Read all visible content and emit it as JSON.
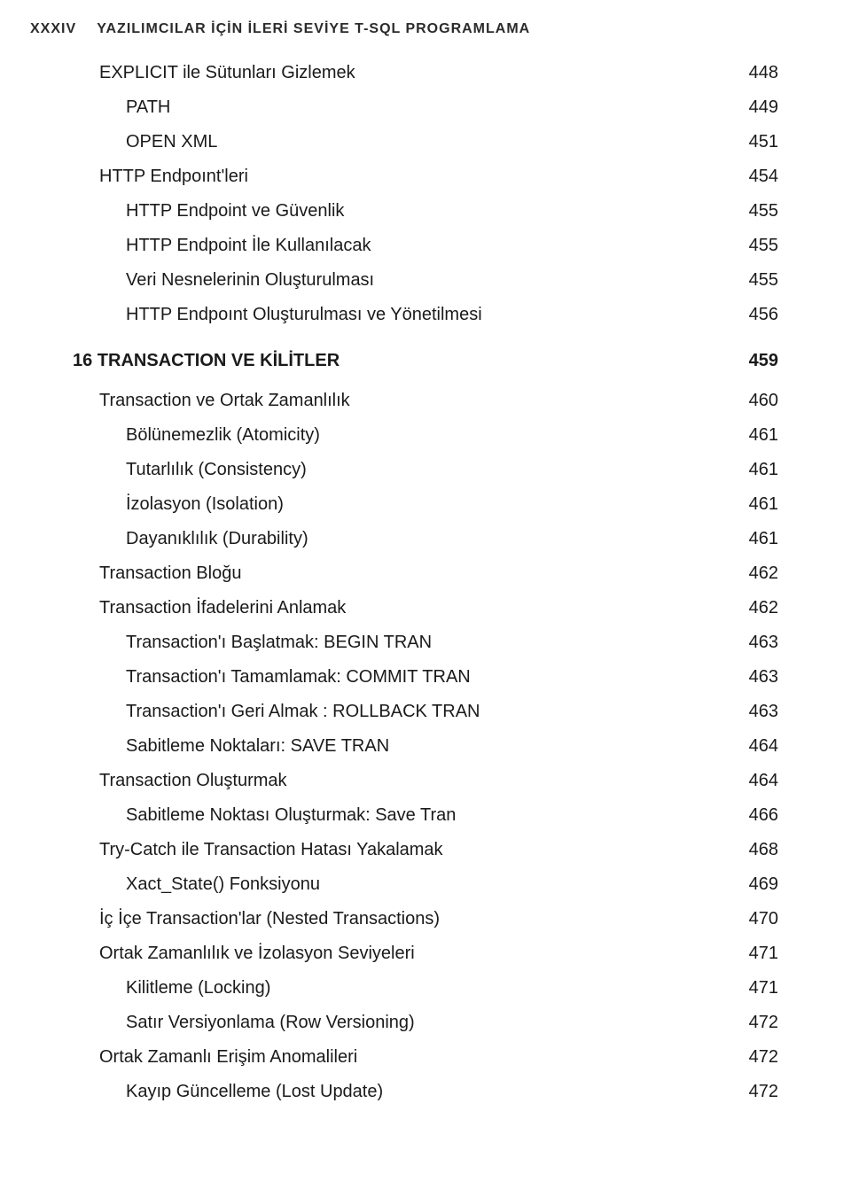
{
  "header": {
    "pageNumeral": "XXXIV",
    "title": "YAZILIMCILAR İÇİN İLERİ SEVİYE T-SQL PROGRAMLAMA"
  },
  "entries": [
    {
      "label": "EXPLICIT ile Sütunları Gizlemek",
      "page": "448",
      "level": 2,
      "chapter": false
    },
    {
      "label": "PATH",
      "page": "449",
      "level": 3,
      "chapter": false
    },
    {
      "label": "OPEN XML",
      "page": "451",
      "level": 3,
      "chapter": false
    },
    {
      "label": "HTTP Endpoınt'leri",
      "page": "454",
      "level": 2,
      "chapter": false
    },
    {
      "label": "HTTP Endpoint ve Güvenlik",
      "page": "455",
      "level": 3,
      "chapter": false
    },
    {
      "label": "HTTP Endpoint İle Kullanılacak",
      "page": "455",
      "level": 3,
      "chapter": false
    },
    {
      "label": "Veri Nesnelerinin Oluşturulması",
      "page": "455",
      "level": 3,
      "chapter": false
    },
    {
      "label": "HTTP Endpoınt Oluşturulması ve Yönetilmesi",
      "page": "456",
      "level": 3,
      "chapter": false
    },
    {
      "label": "16 TRANSACTION VE KİLİTLER",
      "page": "459",
      "level": 1,
      "chapter": true
    },
    {
      "label": "Transaction ve Ortak Zamanlılık",
      "page": "460",
      "level": 2,
      "chapter": false
    },
    {
      "label": "Bölünemezlik (Atomicity)",
      "page": "461",
      "level": 3,
      "chapter": false
    },
    {
      "label": "Tutarlılık (Consistency)",
      "page": "461",
      "level": 3,
      "chapter": false
    },
    {
      "label": "İzolasyon (Isolation)",
      "page": "461",
      "level": 3,
      "chapter": false
    },
    {
      "label": "Dayanıklılık (Durability)",
      "page": "461",
      "level": 3,
      "chapter": false
    },
    {
      "label": "Transaction Bloğu",
      "page": "462",
      "level": 2,
      "chapter": false
    },
    {
      "label": "Transaction İfadelerini Anlamak",
      "page": "462",
      "level": 2,
      "chapter": false
    },
    {
      "label": "Transaction'ı Başlatmak: BEGIN TRAN",
      "page": "463",
      "level": 3,
      "chapter": false
    },
    {
      "label": "Transaction'ı Tamamlamak: COMMIT TRAN",
      "page": "463",
      "level": 3,
      "chapter": false
    },
    {
      "label": "Transaction'ı Geri Almak : ROLLBACK TRAN",
      "page": "463",
      "level": 3,
      "chapter": false
    },
    {
      "label": "Sabitleme Noktaları: SAVE TRAN",
      "page": "464",
      "level": 3,
      "chapter": false
    },
    {
      "label": "Transaction Oluşturmak",
      "page": "464",
      "level": 2,
      "chapter": false
    },
    {
      "label": "Sabitleme Noktası Oluşturmak: Save Tran",
      "page": "466",
      "level": 3,
      "chapter": false
    },
    {
      "label": "Try-Catch ile Transaction Hatası Yakalamak",
      "page": "468",
      "level": 2,
      "chapter": false
    },
    {
      "label": "Xact_State() Fonksiyonu",
      "page": "469",
      "level": 3,
      "chapter": false
    },
    {
      "label": "İç İçe Transaction'lar (Nested Transactions)",
      "page": "470",
      "level": 2,
      "chapter": false
    },
    {
      "label": "Ortak Zamanlılık ve İzolasyon Seviyeleri",
      "page": "471",
      "level": 2,
      "chapter": false
    },
    {
      "label": "Kilitleme (Locking)",
      "page": "471",
      "level": 3,
      "chapter": false
    },
    {
      "label": "Satır Versiyonlama (Row Versioning)",
      "page": "472",
      "level": 3,
      "chapter": false
    },
    {
      "label": "Ortak Zamanlı Erişim Anomalileri",
      "page": "472",
      "level": 2,
      "chapter": false
    },
    {
      "label": "Kayıp Güncelleme (Lost Update)",
      "page": "472",
      "level": 3,
      "chapter": false
    }
  ]
}
